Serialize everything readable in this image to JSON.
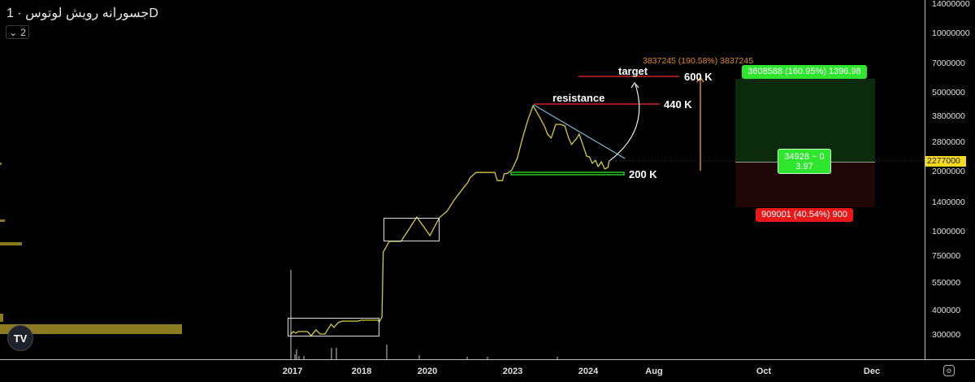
{
  "header": {
    "title": "جسورانه رویش لوتوس · 1D",
    "legend_toggle": "2"
  },
  "price_axis": {
    "last_price": "2277000"
  },
  "colors": {
    "line": "#d9cc3a",
    "resistance": "#cc2222",
    "support": "#22cc22",
    "trend": "#7ab8d8",
    "target_arrow": "#f0a030",
    "profit": "#0c2a0c",
    "loss": "#220808"
  },
  "annotations": {
    "resistance_label": "resistance",
    "resistance_value": "440 K",
    "target_label": "target",
    "target_value": "600 K",
    "support_value": "200 K",
    "measure": "3837245 (190.58%) 3837245",
    "profit_badge": "3608588 (160.95%) 1396.98",
    "entry_badge_1": "34928 ~ 0",
    "entry_badge_2": "3.97",
    "loss_badge": "909001 (40.54%) 900"
  },
  "chart_data": {
    "type": "line",
    "title": "جسورانه رویش لوتوس · 1D",
    "y_scale": "log",
    "y_ticks": [
      14000000,
      10000000,
      7000000,
      5000000,
      3800000,
      2800000,
      2000000,
      1400000,
      1000000,
      750000,
      550000,
      400000,
      300000
    ],
    "x_ticks": [
      "2017",
      "2018",
      "2020",
      "2023",
      "2024",
      "Aug",
      "Oct",
      "Dec"
    ],
    "x_units": "tick index (0=2017 … 7=Dec)",
    "series": [
      {
        "name": "price",
        "points": [
          [
            -0.03,
            300000
          ],
          [
            0.01,
            312000
          ],
          [
            0.05,
            306000
          ],
          [
            0.08,
            312000
          ],
          [
            0.21,
            312000
          ],
          [
            0.24,
            306000
          ],
          [
            0.27,
            297000
          ],
          [
            0.34,
            318000
          ],
          [
            0.4,
            303000
          ],
          [
            0.47,
            303000
          ],
          [
            0.56,
            340000
          ],
          [
            0.6,
            327000
          ],
          [
            0.66,
            346000
          ],
          [
            0.72,
            352000
          ],
          [
            0.94,
            352000
          ],
          [
            1.0,
            356000
          ],
          [
            1.25,
            356000
          ],
          [
            1.27,
            349000
          ],
          [
            1.31,
            369000
          ],
          [
            1.33,
            787000
          ],
          [
            1.36,
            817000
          ],
          [
            1.42,
            889000
          ],
          [
            1.6,
            889000
          ],
          [
            1.84,
            1180000
          ],
          [
            2.03,
            951000
          ],
          [
            2.14,
            1170000
          ],
          [
            2.23,
            1260000
          ],
          [
            2.32,
            1450000
          ],
          [
            2.43,
            1670000
          ],
          [
            2.47,
            1750000
          ],
          [
            2.5,
            1860000
          ],
          [
            2.57,
            1980000
          ],
          [
            2.79,
            1980000
          ],
          [
            2.82,
            1800000
          ],
          [
            2.88,
            1800000
          ],
          [
            2.9,
            1950000
          ],
          [
            2.94,
            1960000
          ],
          [
            2.99,
            2040000
          ],
          [
            3.02,
            2160000
          ],
          [
            3.06,
            2330000
          ],
          [
            3.13,
            2950000
          ],
          [
            3.2,
            3630000
          ],
          [
            3.27,
            4300000
          ],
          [
            3.35,
            3800000
          ],
          [
            3.39,
            3560000
          ],
          [
            3.43,
            3330000
          ],
          [
            3.46,
            3090000
          ],
          [
            3.51,
            2950000
          ],
          [
            3.57,
            3460000
          ],
          [
            3.63,
            3460000
          ],
          [
            3.69,
            3400000
          ],
          [
            3.74,
            2950000
          ],
          [
            3.78,
            2740000
          ],
          [
            3.85,
            2950000
          ],
          [
            3.88,
            3090000
          ],
          [
            3.94,
            2650000
          ],
          [
            3.98,
            2390000
          ],
          [
            4.02,
            2370000
          ],
          [
            4.06,
            2200000
          ],
          [
            4.11,
            2280000
          ],
          [
            4.15,
            2120000
          ],
          [
            4.2,
            2240000
          ],
          [
            4.25,
            2060000
          ],
          [
            4.3,
            2100000
          ],
          [
            4.32,
            2277000
          ]
        ]
      }
    ],
    "last_value": 2277000
  }
}
